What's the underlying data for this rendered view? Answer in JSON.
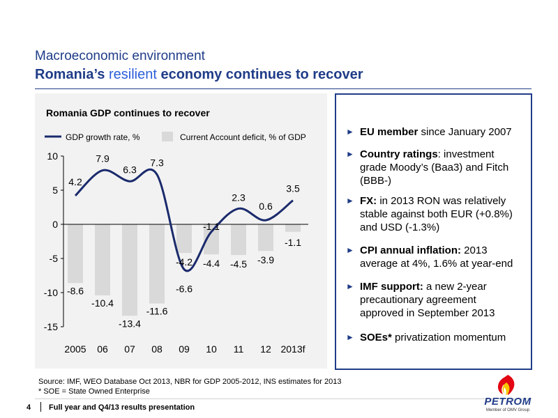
{
  "header": {
    "subtitle": "Macroeconomic environment",
    "title_part1": "Romania’s ",
    "title_accent": "resilient",
    "title_part2": " economy continues to recover"
  },
  "chart_data": {
    "type": "bar",
    "title": "Romania GDP continues to recover",
    "legend_position": "top",
    "categories": [
      "2005",
      "06",
      "07",
      "08",
      "09",
      "10",
      "11",
      "12",
      "2013f"
    ],
    "series": [
      {
        "name": "GDP growth rate, %",
        "kind": "line",
        "color": "#1a2a6c",
        "values": [
          4.2,
          7.9,
          6.3,
          7.3,
          -6.6,
          -1.1,
          2.3,
          0.6,
          3.5
        ]
      },
      {
        "name": "Current Account deficit, % of GDP",
        "kind": "bar",
        "color": "#d9d9d9",
        "values": [
          -8.6,
          -10.4,
          -13.4,
          -11.6,
          -4.2,
          -4.4,
          -4.5,
          -3.9,
          -1.1
        ]
      }
    ],
    "line_labels": [
      "4.2",
      "7.9",
      "6.3",
      "7.3",
      "-6.6",
      "-1.1",
      "2.3",
      "0.6",
      "3.5"
    ],
    "bar_labels": [
      "-8.6",
      "-10.4",
      "-13.4",
      "-11.6",
      "-4.2",
      "-4.4",
      "-4.5",
      "-3.9",
      "-1.1"
    ],
    "ylim": [
      -15,
      10
    ],
    "yticks": [
      "10",
      "5",
      "0",
      "-5",
      "-10",
      "-15"
    ],
    "grid": false,
    "xlabel": "",
    "ylabel": ""
  },
  "bullets": [
    {
      "bold": "EU member",
      "text": " since January 2007"
    },
    {
      "bold": "Country ratings",
      "text": ": investment grade Moody’s (Baa3) and Fitch (BBB-)"
    },
    {
      "bold": "FX:",
      "text": " in 2013 RON was relatively stable against both EUR (+0.8%) and USD (-1.3%)"
    },
    {
      "bold": "CPI annual inflation:",
      "text": " 2013 average at 4%, 1.6% at year-end"
    },
    {
      "bold": "IMF support:",
      "text": " a new 2-year precautionary agreement approved in September 2013"
    },
    {
      "bold": "SOEs*",
      "text": " privatization momentum"
    }
  ],
  "bullet_arrow": "►",
  "footer": {
    "source": "Source: IMF, WEO Database Oct 2013, NBR for GDP 2005-2012,  INS estimates for 2013",
    "note": "* SOE = State Owned Enterprise",
    "page_number": "4",
    "presentation": "Full year and Q4/13 results presentation"
  },
  "logo": {
    "name": "PETROM",
    "tagline": "Member of OMV Group"
  },
  "colors": {
    "brand": "#1f3c88",
    "accent": "#2b5fd9",
    "line": "#1a2a6c",
    "bar": "#d9d9d9",
    "logo_red": "#e30613",
    "logo_yellow": "#f7c600"
  }
}
